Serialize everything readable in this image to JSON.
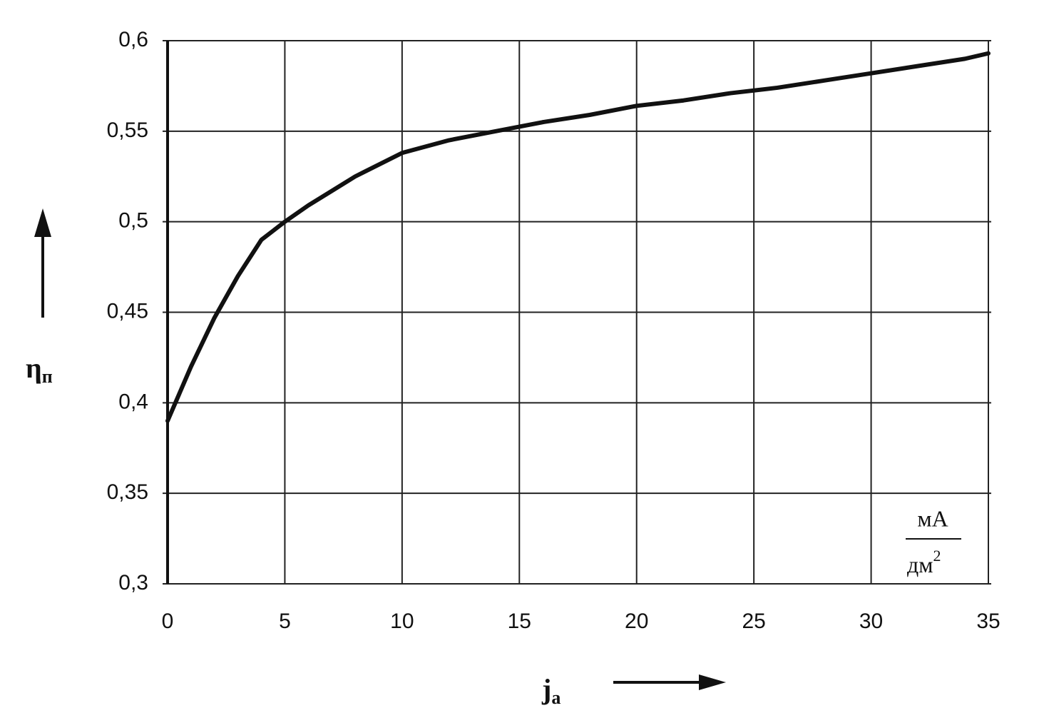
{
  "chart_data": {
    "type": "line",
    "xlabel": {
      "text": "j",
      "subscript": "a"
    },
    "ylabel": {
      "text": "η",
      "subscript": "п"
    },
    "unit": {
      "numerator": "мА",
      "denominator": "дм",
      "exponent": "2"
    },
    "x": [
      0,
      1,
      2,
      3,
      4,
      5,
      6,
      7,
      8,
      10,
      12,
      14,
      16,
      18,
      20,
      22,
      24,
      26,
      28,
      30,
      32,
      34,
      35
    ],
    "values": [
      0.39,
      0.42,
      0.447,
      0.47,
      0.49,
      0.5,
      0.509,
      0.517,
      0.525,
      0.538,
      0.545,
      0.55,
      0.555,
      0.559,
      0.564,
      0.567,
      0.571,
      0.574,
      0.578,
      0.582,
      0.586,
      0.59,
      0.593
    ],
    "color": "#111111",
    "xlim": [
      0,
      35
    ],
    "ylim": [
      0.3,
      0.6
    ],
    "xticks": [
      0,
      5,
      10,
      15,
      20,
      25,
      30,
      35
    ],
    "yticks": [
      {
        "value": 0.3,
        "label": "0,3"
      },
      {
        "value": 0.35,
        "label": "0,35"
      },
      {
        "value": 0.4,
        "label": "0,4"
      },
      {
        "value": 0.45,
        "label": "0,45"
      },
      {
        "value": 0.5,
        "label": "0,5"
      },
      {
        "value": 0.55,
        "label": "0,55"
      },
      {
        "value": 0.6,
        "label": "0,6"
      }
    ],
    "grid": true
  }
}
